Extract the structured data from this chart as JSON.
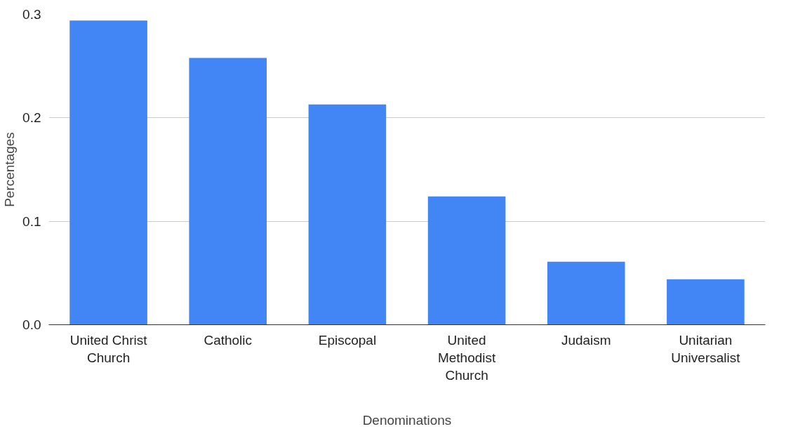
{
  "chart_data": {
    "type": "bar",
    "xlabel": "Denominations",
    "ylabel": "Percentages",
    "categories": [
      "United Christ Church",
      "Catholic",
      "Episcopal",
      "United Methodist Church",
      "Judaism",
      "Unitarian Universalist"
    ],
    "values": [
      0.294,
      0.258,
      0.213,
      0.124,
      0.061,
      0.044
    ],
    "color": "#4285f4",
    "ylim": [
      0,
      0.3
    ],
    "yticks": [
      {
        "value": 0,
        "label": "0.0"
      },
      {
        "value": 0.1,
        "label": "0.1"
      },
      {
        "value": 0.2,
        "label": "0.2"
      },
      {
        "value": 0.3,
        "label": "0.3"
      }
    ],
    "grid": "y"
  }
}
